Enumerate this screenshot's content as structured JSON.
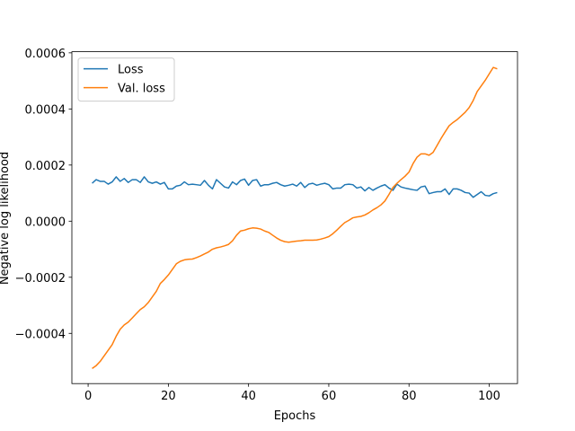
{
  "chart_data": {
    "type": "line",
    "xlabel": "Epochs",
    "ylabel": "Negative log likelihood",
    "legend": "upper left",
    "xlim": [
      -4.05,
      107.05
    ],
    "ylim": [
      -0.000579,
      0.000604
    ],
    "xticks": [
      0,
      20,
      40,
      60,
      80,
      100
    ],
    "yticks": [
      {
        "value": -0.0004,
        "label": "−0.0004"
      },
      {
        "value": -0.0002,
        "label": "−0.0002"
      },
      {
        "value": 0,
        "label": "0.0000"
      },
      0.0002,
      0.0004,
      0.0006
    ],
    "x": [
      1,
      2,
      3,
      4,
      5,
      6,
      7,
      8,
      9,
      10,
      11,
      12,
      13,
      14,
      15,
      16,
      17,
      18,
      19,
      20,
      21,
      22,
      23,
      24,
      25,
      26,
      27,
      28,
      29,
      30,
      31,
      32,
      33,
      34,
      35,
      36,
      37,
      38,
      39,
      40,
      41,
      42,
      43,
      44,
      45,
      46,
      47,
      48,
      49,
      50,
      51,
      52,
      53,
      54,
      55,
      56,
      57,
      58,
      59,
      60,
      61,
      62,
      63,
      64,
      65,
      66,
      67,
      68,
      69,
      70,
      71,
      72,
      73,
      74,
      75,
      76,
      77,
      78,
      79,
      80,
      81,
      82,
      83,
      84,
      85,
      86,
      87,
      88,
      89,
      90,
      91,
      92,
      93,
      94,
      95,
      96,
      97,
      98,
      99,
      100,
      101,
      102
    ],
    "series": [
      {
        "name": "Loss",
        "color": "#1f77b4",
        "values": [
          0.000135,
          0.000148,
          0.000142,
          0.000142,
          0.000132,
          0.00014,
          0.000158,
          0.000142,
          0.000152,
          0.000138,
          0.000148,
          0.000148,
          0.000138,
          0.000158,
          0.00014,
          0.000135,
          0.00014,
          0.000132,
          0.000138,
          0.000115,
          0.000115,
          0.000125,
          0.000128,
          0.00014,
          0.00013,
          0.000132,
          0.00013,
          0.000128,
          0.000145,
          0.000128,
          0.000115,
          0.000148,
          0.000135,
          0.000122,
          0.000118,
          0.00014,
          0.00013,
          0.000145,
          0.00015,
          0.000128,
          0.000145,
          0.000148,
          0.000125,
          0.00013,
          0.00013,
          0.000135,
          0.000138,
          0.00013,
          0.000125,
          0.000128,
          0.000132,
          0.000125,
          0.000138,
          0.00012,
          0.000132,
          0.000135,
          0.000128,
          0.000132,
          0.000135,
          0.00013,
          0.000115,
          0.000118,
          0.000118,
          0.00013,
          0.000132,
          0.00013,
          0.000118,
          0.000122,
          0.000108,
          0.00012,
          0.00011,
          0.000118,
          0.000125,
          0.00013,
          0.000118,
          0.00011,
          0.000132,
          0.000122,
          0.000118,
          0.000115,
          0.000112,
          0.00011,
          0.000122,
          0.000125,
          9.8e-05,
          0.000102,
          0.000105,
          0.000105,
          0.000115,
          9.5e-05,
          0.000115,
          0.000115,
          0.00011,
          0.000102,
          0.0001,
          8.5e-05,
          9.5e-05,
          0.000105,
          9.2e-05,
          9e-05,
          9.8e-05,
          0.000102
        ]
      },
      {
        "name": "Val. loss",
        "color": "#ff7f0e",
        "values": [
          -0.000525,
          -0.000515,
          -0.0005,
          -0.00048,
          -0.00046,
          -0.00044,
          -0.00041,
          -0.000385,
          -0.00037,
          -0.00036,
          -0.000345,
          -0.00033,
          -0.000315,
          -0.000305,
          -0.00029,
          -0.00027,
          -0.00025,
          -0.000222,
          -0.000208,
          -0.000192,
          -0.000172,
          -0.000152,
          -0.000143,
          -0.000138,
          -0.000136,
          -0.000135,
          -0.00013,
          -0.000124,
          -0.000117,
          -0.00011,
          -0.0001,
          -9.5e-05,
          -9.2e-05,
          -8.8e-05,
          -8.3e-05,
          -7e-05,
          -5e-05,
          -3.5e-05,
          -3.2e-05,
          -2.7e-05,
          -2.4e-05,
          -2.5e-05,
          -2.8e-05,
          -3.5e-05,
          -4e-05,
          -5e-05,
          -6e-05,
          -6.8e-05,
          -7.3e-05,
          -7.5e-05,
          -7.3e-05,
          -7.1e-05,
          -7e-05,
          -6.8e-05,
          -6.8e-05,
          -6.8e-05,
          -6.7e-05,
          -6.4e-05,
          -6e-05,
          -5.5e-05,
          -4.5e-05,
          -3.2e-05,
          -1.8e-05,
          -5e-06,
          3e-06,
          1.2e-05,
          1.5e-05,
          1.7e-05,
          2.2e-05,
          3e-05,
          4e-05,
          4.8e-05,
          5.8e-05,
          7.2e-05,
          9.5e-05,
          0.00012,
          0.000135,
          0.000148,
          0.00016,
          0.000175,
          0.000205,
          0.000228,
          0.00024,
          0.00024,
          0.000235,
          0.000245,
          0.00027,
          0.000295,
          0.000318,
          0.00034,
          0.000352,
          0.000362,
          0.000375,
          0.000388,
          0.000405,
          0.00043,
          0.000462,
          0.000482,
          0.000502,
          0.000525,
          0.000548,
          0.000543
        ]
      }
    ]
  }
}
